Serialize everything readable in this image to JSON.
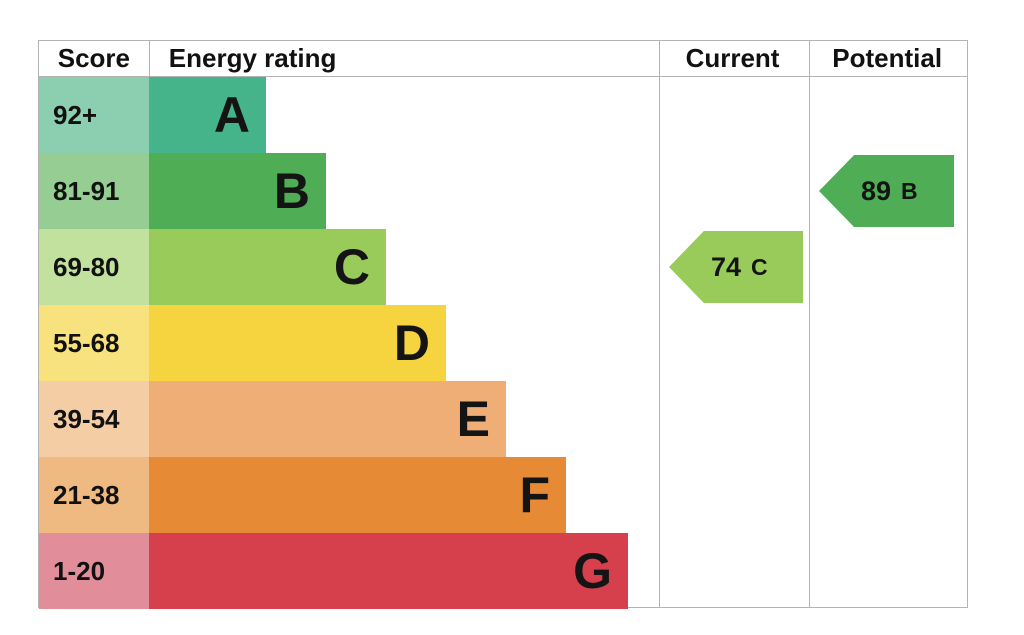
{
  "header": {
    "score": "Score",
    "energy_rating": "Energy rating",
    "current": "Current",
    "potential": "Potential"
  },
  "bands": [
    {
      "score": "92+",
      "letter": "A",
      "color": "#45b48b",
      "tint": "#8ccfb0"
    },
    {
      "score": "81-91",
      "letter": "B",
      "color": "#4fad55",
      "tint": "#95cd92"
    },
    {
      "score": "69-80",
      "letter": "C",
      "color": "#99cb5b",
      "tint": "#c2e09e"
    },
    {
      "score": "55-68",
      "letter": "D",
      "color": "#f6d440",
      "tint": "#f8e27d"
    },
    {
      "score": "39-54",
      "letter": "E",
      "color": "#efae75",
      "tint": "#f4cda4"
    },
    {
      "score": "21-38",
      "letter": "F",
      "color": "#e78a36",
      "tint": "#efba82"
    },
    {
      "score": "1-20",
      "letter": "G",
      "color": "#d6404d",
      "tint": "#e28e9a"
    }
  ],
  "current": {
    "value": "74",
    "letter": "C",
    "color": "#99cb5b"
  },
  "potential": {
    "value": "89",
    "letter": "B",
    "color": "#4fad55"
  },
  "chart_data": {
    "type": "bar",
    "title": "Energy rating (EPC)",
    "categories": [
      "A",
      "B",
      "C",
      "D",
      "E",
      "F",
      "G"
    ],
    "score_ranges": [
      "92+",
      "81-91",
      "69-80",
      "55-68",
      "39-54",
      "21-38",
      "1-20"
    ],
    "bar_colors": [
      "#45b48b",
      "#4fad55",
      "#99cb5b",
      "#f6d440",
      "#efae75",
      "#e78a36",
      "#d6404d"
    ],
    "columns": [
      "Score",
      "Energy rating",
      "Current",
      "Potential"
    ],
    "markers": [
      {
        "name": "Current",
        "value": 74,
        "band": "C",
        "color": "#99cb5b"
      },
      {
        "name": "Potential",
        "value": 89,
        "band": "B",
        "color": "#4fad55"
      }
    ],
    "legend_position": "none",
    "grid": false
  }
}
